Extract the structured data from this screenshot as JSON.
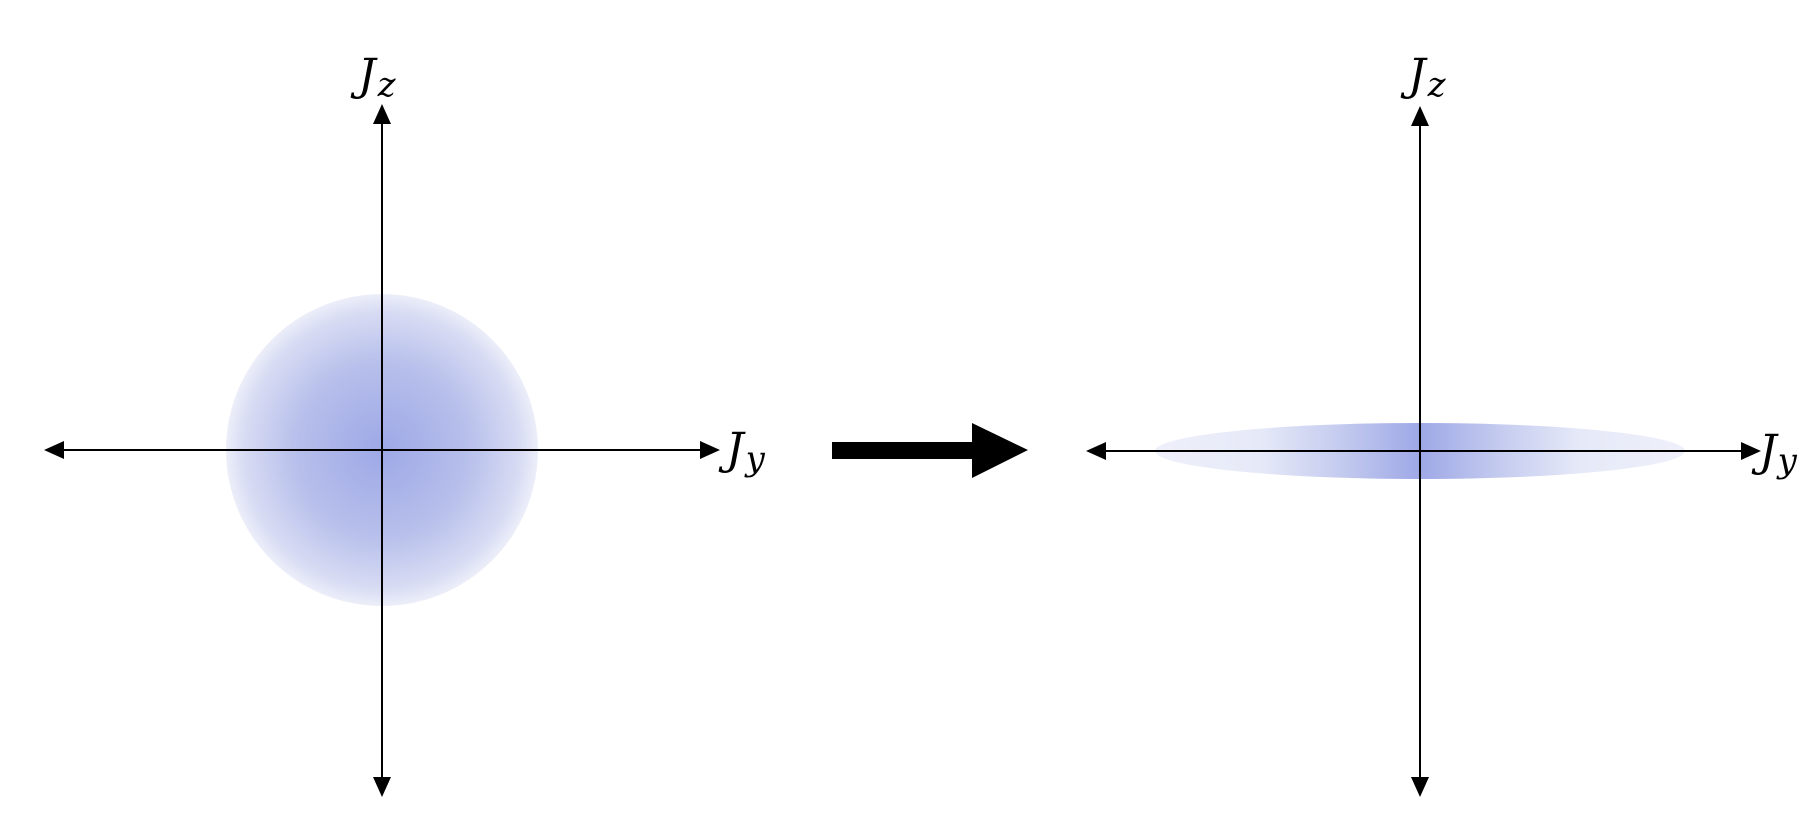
{
  "panels": [
    {
      "id": "before",
      "shape": "circle",
      "labels": {
        "vertical": {
          "main": "J",
          "sub": "z"
        },
        "horizontal": {
          "main": "J",
          "sub": "y"
        }
      }
    },
    {
      "id": "after",
      "shape": "ellipse",
      "labels": {
        "vertical": {
          "main": "J",
          "sub": "z"
        },
        "horizontal": {
          "main": "J",
          "sub": "y"
        }
      }
    }
  ],
  "colors": {
    "axis": "#000000",
    "distribution_core": "#9ea8e6",
    "distribution_edge": "#eceef9",
    "transition_arrow": "#000000"
  },
  "icons": {
    "transition": "right-arrow-icon"
  }
}
